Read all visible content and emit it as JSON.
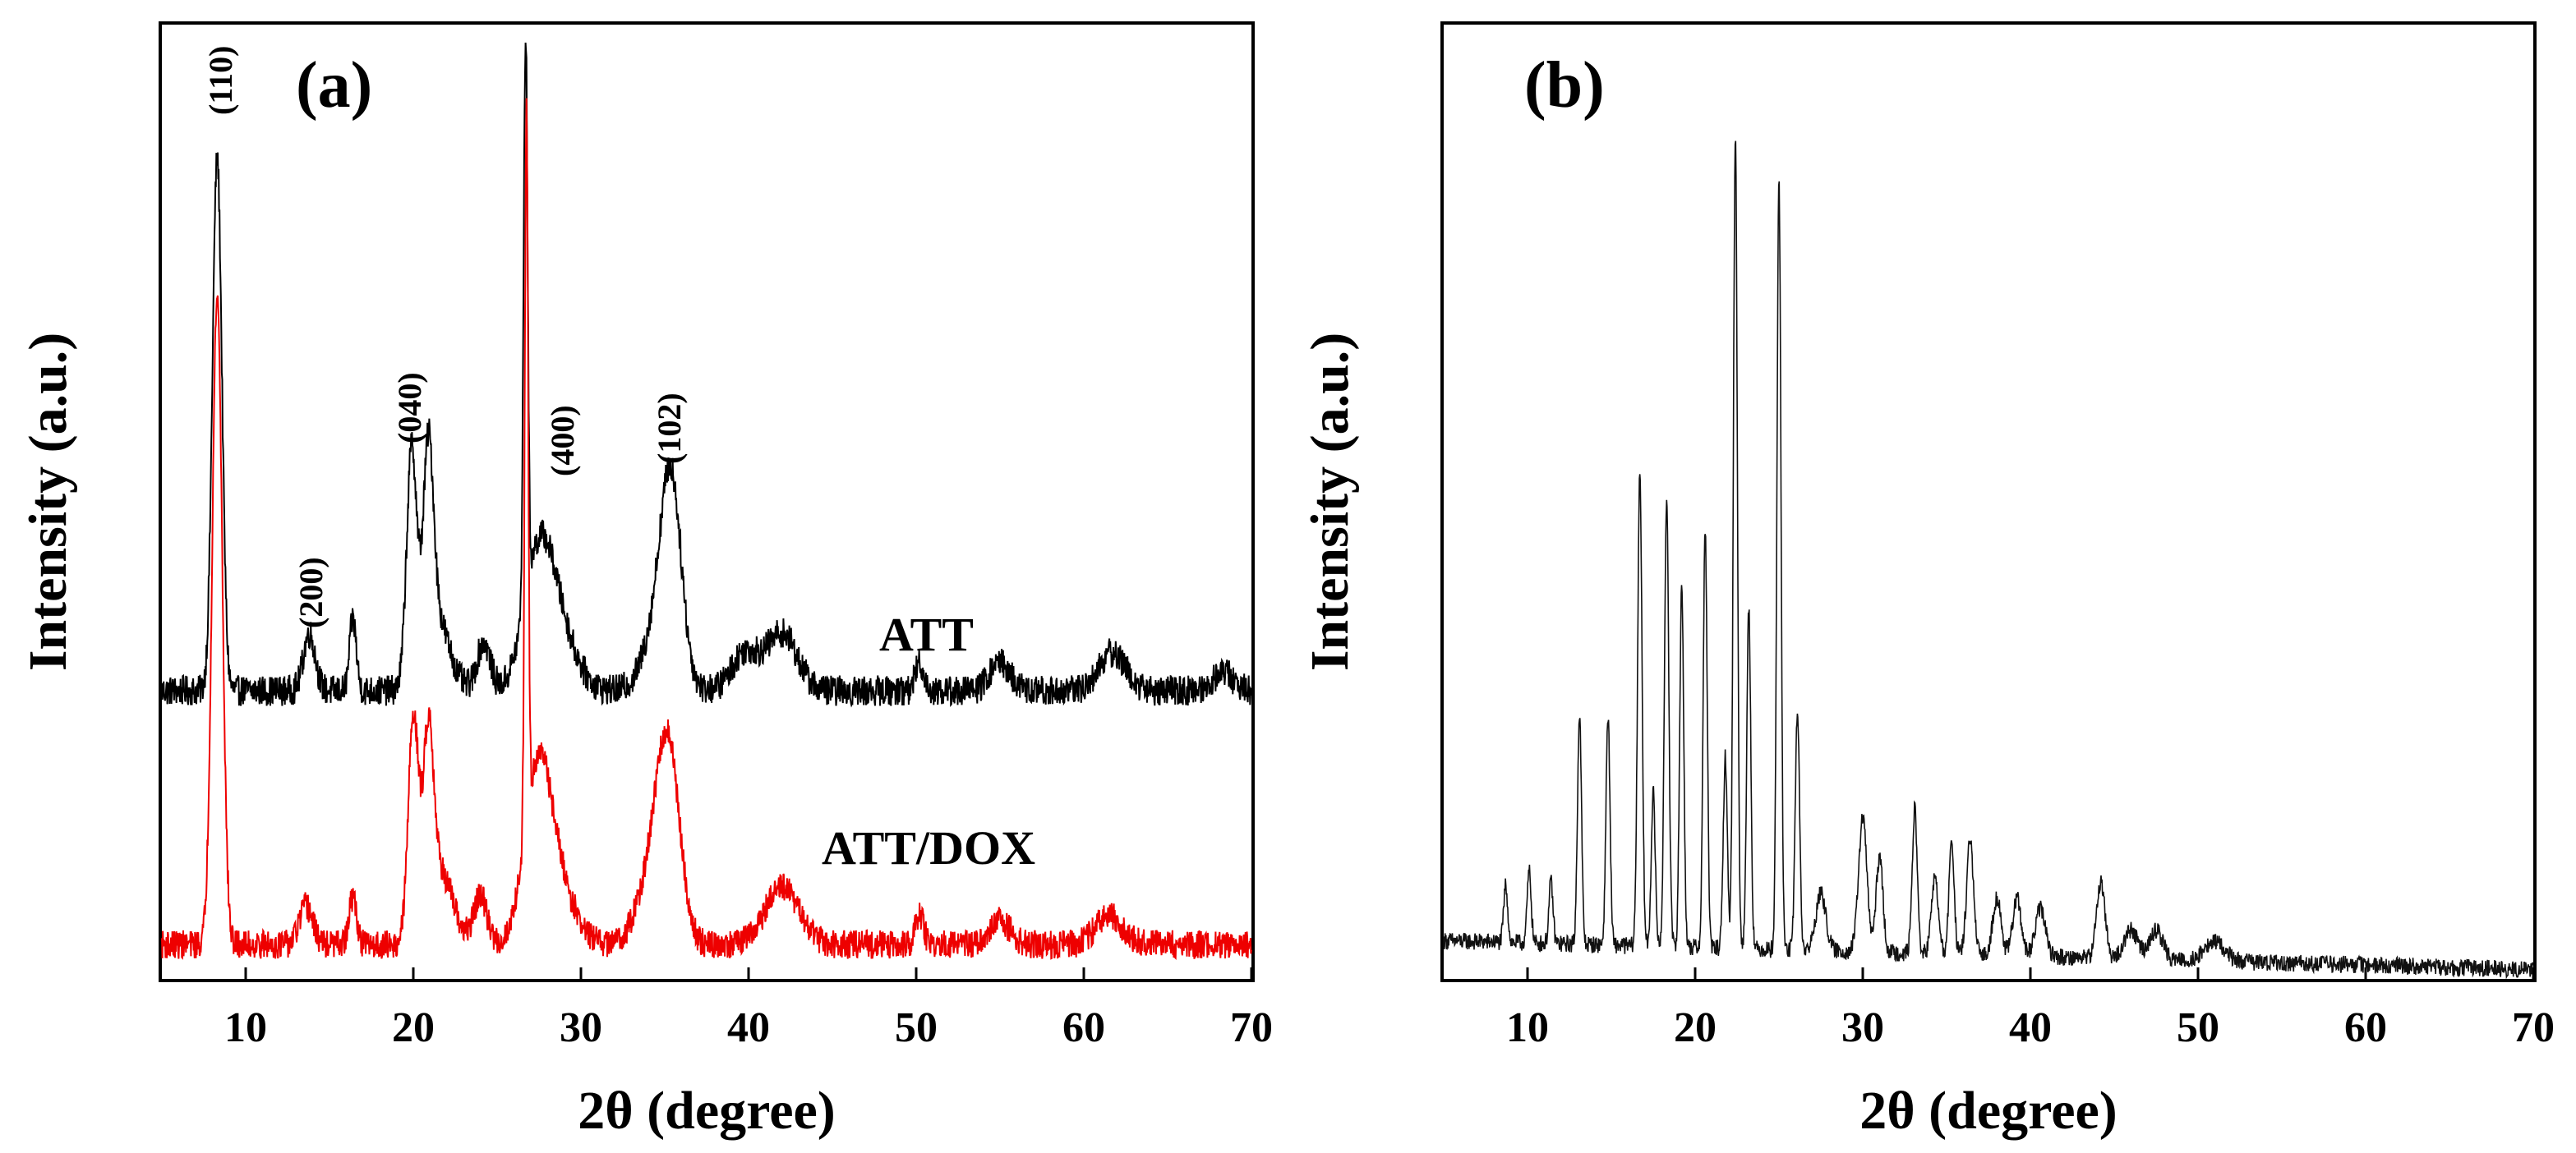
{
  "colors": {
    "frame": "#000000",
    "att": "#000000",
    "att_dox": "#ee0000",
    "panel_b": "#111111"
  },
  "chart_data": [
    {
      "panel_label": "(a)",
      "type": "line",
      "xlabel": "2θ (degree)",
      "ylabel": "Intensity (a.u.)",
      "xlim": [
        5,
        70
      ],
      "ylim": [
        0,
        100
      ],
      "xticks": [
        10,
        20,
        30,
        40,
        50,
        60,
        70
      ],
      "series": [
        {
          "name": "ATT",
          "color_key": "att",
          "baseline": 30.2,
          "noise": 1.6,
          "peaks": [
            [
              8.3,
              55.8,
              0.28
            ],
            [
              13.8,
              6.0,
              0.35
            ],
            [
              16.4,
              7.5,
              0.2
            ],
            [
              19.9,
              24.0,
              0.3
            ],
            [
              20.9,
              20.0,
              0.3
            ],
            [
              21.3,
              8.0,
              0.8
            ],
            [
              24.2,
              5.0,
              0.4
            ],
            [
              26.7,
              58.8,
              0.12
            ],
            [
              27.5,
              14.0,
              0.9
            ],
            [
              28.8,
              5.0,
              1.0
            ],
            [
              34.8,
              8.0,
              0.9
            ],
            [
              35.4,
              17.0,
              0.6
            ],
            [
              39.8,
              4.0,
              0.8
            ],
            [
              42.0,
              6.0,
              0.9
            ],
            [
              50.2,
              3.0,
              0.25
            ],
            [
              55.0,
              3.0,
              0.6
            ],
            [
              61.7,
              4.0,
              0.8
            ],
            [
              68.3,
              2.0,
              0.6
            ]
          ]
        },
        {
          "name": "ATT/DOX",
          "color_key": "att_dox",
          "baseline": 3.6,
          "noise": 1.5,
          "peaks": [
            [
              8.3,
              68.0,
              0.3
            ],
            [
              13.6,
              4.0,
              0.4
            ],
            [
              16.4,
              5.0,
              0.22
            ],
            [
              20.0,
              23.0,
              0.3
            ],
            [
              20.9,
              18.0,
              0.3
            ],
            [
              21.5,
              8.0,
              0.8
            ],
            [
              24.0,
              5.0,
              0.4
            ],
            [
              26.75,
              75.0,
              0.1
            ],
            [
              27.4,
              17.0,
              0.8
            ],
            [
              28.6,
              6.0,
              1.0
            ],
            [
              35.2,
              19.0,
              0.7
            ],
            [
              34.2,
              6.0,
              0.9
            ],
            [
              42.0,
              6.0,
              1.0
            ],
            [
              50.2,
              3.0,
              0.25
            ],
            [
              55.0,
              2.5,
              0.6
            ],
            [
              61.5,
              3.0,
              0.8
            ]
          ]
        }
      ],
      "peak_labels": [
        "(110)",
        "(200)",
        "(040)",
        "(400)",
        "(102)"
      ],
      "series_labels": [
        "ATT",
        "ATT/DOX"
      ]
    },
    {
      "panel_label": "(b)",
      "type": "line",
      "xlabel": "2θ (degree)",
      "ylabel": "Intensity (a.u.)",
      "xlim": [
        5,
        70
      ],
      "ylim": [
        0,
        100
      ],
      "xticks": [
        10,
        20,
        30,
        40,
        50,
        60,
        70
      ],
      "series": [
        {
          "name": "panel-b",
          "color_key": "panel_b",
          "baseline_start": 4.0,
          "baseline_end": 1.0,
          "noise": 0.9,
          "peaks": [
            [
              8.7,
              6.0,
              0.12
            ],
            [
              10.1,
              7.5,
              0.12
            ],
            [
              11.4,
              6.5,
              0.12
            ],
            [
              13.1,
              24.0,
              0.12
            ],
            [
              14.8,
              24.0,
              0.12
            ],
            [
              16.7,
              50.0,
              0.13
            ],
            [
              17.5,
              16.0,
              0.12
            ],
            [
              18.3,
              47.0,
              0.13
            ],
            [
              19.2,
              38.0,
              0.12
            ],
            [
              20.6,
              44.0,
              0.12
            ],
            [
              21.8,
              20.0,
              0.12
            ],
            [
              22.4,
              85.0,
              0.12
            ],
            [
              23.2,
              36.0,
              0.12
            ],
            [
              25.0,
              81.0,
              0.12
            ],
            [
              26.1,
              25.0,
              0.13
            ],
            [
              27.5,
              6.0,
              0.3
            ],
            [
              30.0,
              14.0,
              0.25
            ],
            [
              31.0,
              10.0,
              0.2
            ],
            [
              33.1,
              15.0,
              0.15
            ],
            [
              34.3,
              8.0,
              0.2
            ],
            [
              35.3,
              12.0,
              0.15
            ],
            [
              36.4,
              12.0,
              0.2
            ],
            [
              38.0,
              6.0,
              0.25
            ],
            [
              39.2,
              6.0,
              0.25
            ],
            [
              40.6,
              5.0,
              0.3
            ],
            [
              44.2,
              8.0,
              0.25
            ],
            [
              46.0,
              3.0,
              0.4
            ],
            [
              47.5,
              3.0,
              0.4
            ],
            [
              51.0,
              2.0,
              0.6
            ]
          ]
        }
      ]
    }
  ]
}
